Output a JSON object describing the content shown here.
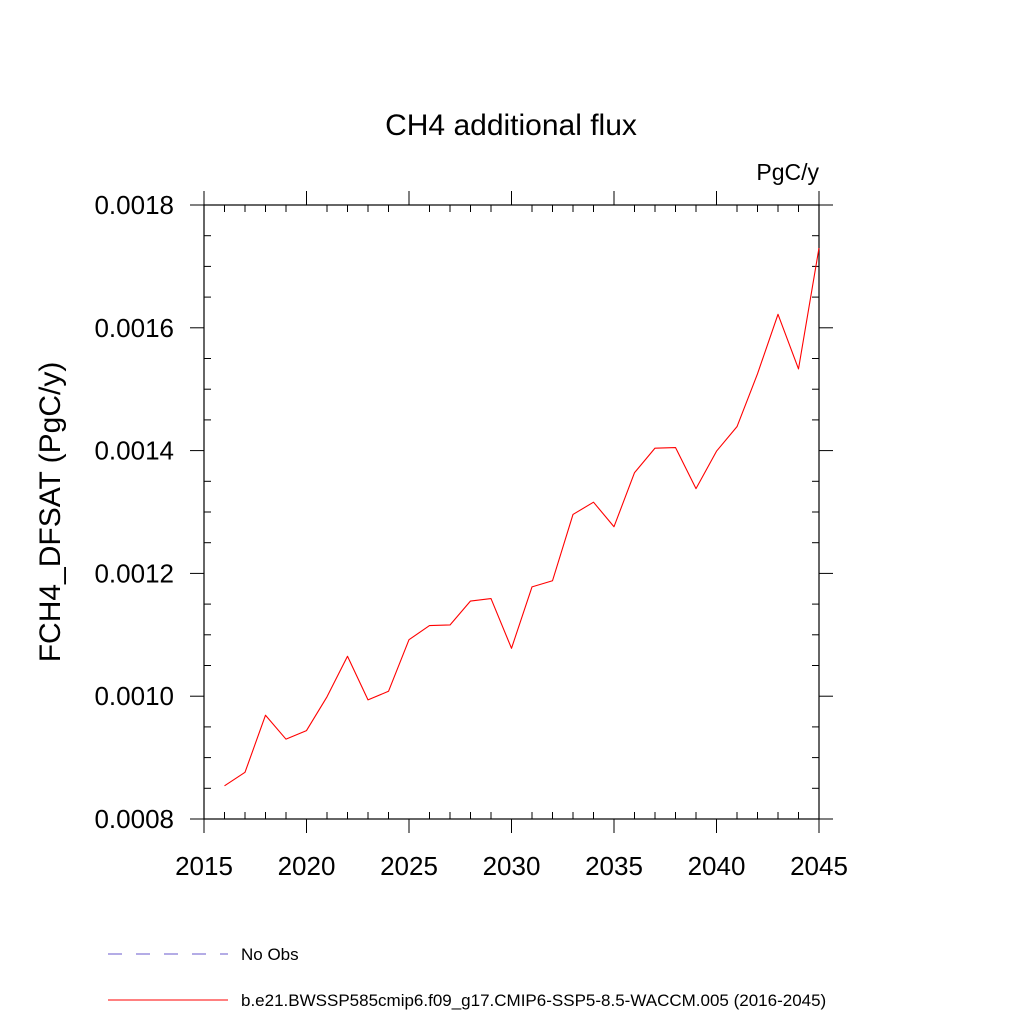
{
  "chart_data": {
    "type": "line",
    "title": "CH4 additional flux",
    "units_label": "PgC/y",
    "ylabel": "FCH4_DFSAT  (PgC/y)",
    "xlabel": "",
    "xlim": [
      2015,
      2045
    ],
    "ylim": [
      0.0008,
      0.0018
    ],
    "x_ticks": [
      2015,
      2020,
      2025,
      2030,
      2035,
      2040,
      2045
    ],
    "x_tick_labels": [
      "2015",
      "2020",
      "2025",
      "2030",
      "2035",
      "2040",
      "2045"
    ],
    "y_ticks": [
      0.0008,
      0.001,
      0.0012,
      0.0014,
      0.0016,
      0.0018
    ],
    "y_tick_labels": [
      "0.0008",
      "0.0010",
      "0.0012",
      "0.0014",
      "0.0016",
      "0.0018"
    ],
    "grid": false,
    "legend_position": "bottom",
    "x": [
      2016,
      2017,
      2018,
      2019,
      2020,
      2021,
      2022,
      2023,
      2024,
      2025,
      2026,
      2027,
      2028,
      2029,
      2030,
      2031,
      2032,
      2033,
      2034,
      2035,
      2036,
      2037,
      2038,
      2039,
      2040,
      2041,
      2042,
      2043,
      2044,
      2045
    ],
    "series": [
      {
        "name": "b.e21.BWSSP585cmip6.f09_g17.CMIP6-SSP5-8.5-WACCM.005 (2016-2045)",
        "color": "#ff0000",
        "style": "solid",
        "values": [
          0.000854,
          0.000876,
          0.000969,
          0.00093,
          0.000944,
          0.000999,
          0.001065,
          0.000994,
          0.001008,
          0.001092,
          0.001115,
          0.001116,
          0.001155,
          0.001159,
          0.001078,
          0.001178,
          0.001188,
          0.001296,
          0.001316,
          0.001276,
          0.001364,
          0.001404,
          0.001405,
          0.001338,
          0.001399,
          0.001439,
          0.001525,
          0.001622,
          0.001533,
          0.00173
        ]
      }
    ],
    "legend": [
      {
        "label": "No Obs",
        "color": "#6a5acd",
        "style": "dashed"
      },
      {
        "label": "b.e21.BWSSP585cmip6.f09_g17.CMIP6-SSP5-8.5-WACCM.005 (2016-2045)",
        "color": "#ff0000",
        "style": "solid"
      }
    ]
  }
}
